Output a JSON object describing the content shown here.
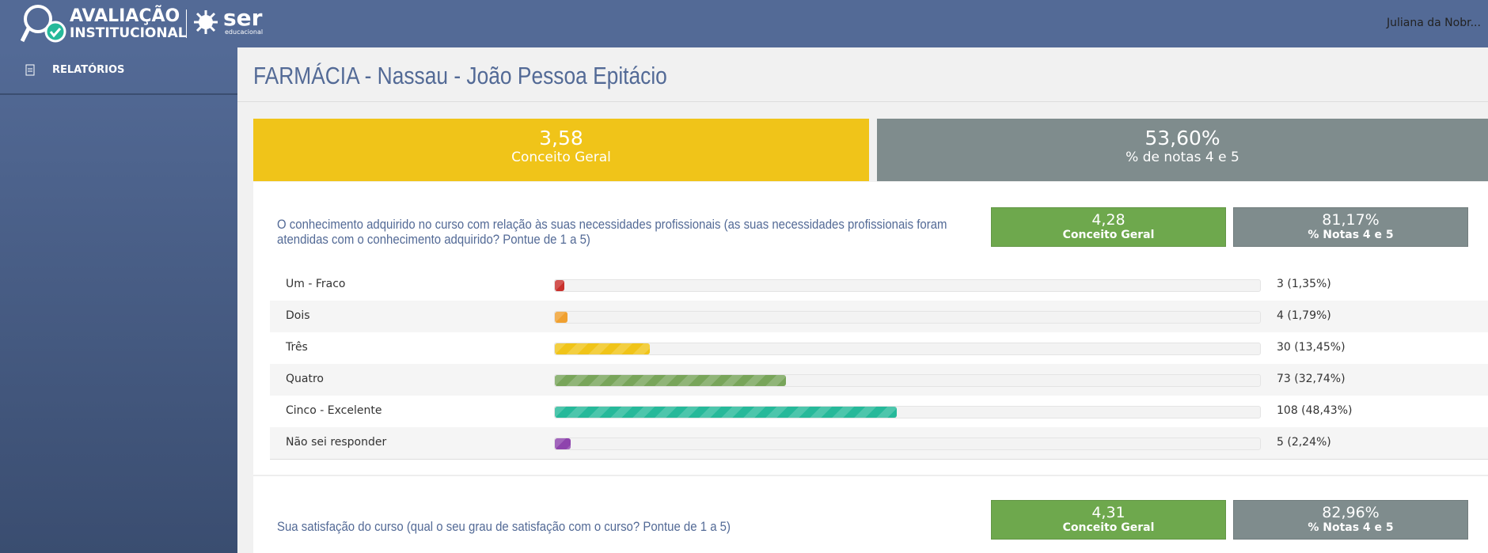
{
  "header": {
    "logo_title": "AVALIAÇÃO",
    "logo_subtitle": "INSTITUCIONAL",
    "brand": "ser",
    "brand_sub": "educacional",
    "user": "Juliana da Nobr..."
  },
  "sidebar": {
    "items": [
      "RELATÓRIOS"
    ]
  },
  "page": {
    "title": "FARMÁCIA - Nassau - João Pessoa Epitácio",
    "summary": [
      {
        "value": "3,58",
        "label": "Conceito Geral"
      },
      {
        "value": "53,60%",
        "label": "% de notas 4 e 5"
      }
    ]
  },
  "questions": [
    {
      "text": "O conhecimento adquirido no curso com relação às suas necessidades profissionais (as suas necessidades profissionais foram atendidas com o conhecimento adquirido? Pontue de 1 a 5)",
      "score": {
        "value": "4,28",
        "label": "Conceito Geral"
      },
      "pct": {
        "value": "81,17%",
        "label": "% Notas 4 e 5"
      },
      "answers": [
        {
          "label": "Um - Fraco",
          "count": 3,
          "percent": 1.35,
          "value_label": "3 (1,35%)",
          "color": "#c9302c"
        },
        {
          "label": "Dois",
          "count": 4,
          "percent": 1.79,
          "value_label": "4 (1,79%)",
          "color": "#f0a030"
        },
        {
          "label": "Três",
          "count": 30,
          "percent": 13.45,
          "value_label": "30 (13,45%)",
          "color": "#f0c419"
        },
        {
          "label": "Quatro",
          "count": 73,
          "percent": 32.74,
          "value_label": "73 (32,74%)",
          "color": "#78a55a"
        },
        {
          "label": "Cinco - Excelente",
          "count": 108,
          "percent": 48.43,
          "value_label": "108 (48,43%)",
          "color": "#26b99a"
        },
        {
          "label": "Não sei responder",
          "count": 5,
          "percent": 2.24,
          "value_label": "5 (2,24%)",
          "color": "#8e44ad"
        }
      ]
    },
    {
      "text": "Sua satisfação do curso (qual o seu grau de satisfação com o curso? Pontue de 1 a 5)",
      "score": {
        "value": "4,31",
        "label": "Conceito Geral"
      },
      "pct": {
        "value": "82,96%",
        "label": "% Notas 4 e 5"
      },
      "answers": []
    }
  ]
}
